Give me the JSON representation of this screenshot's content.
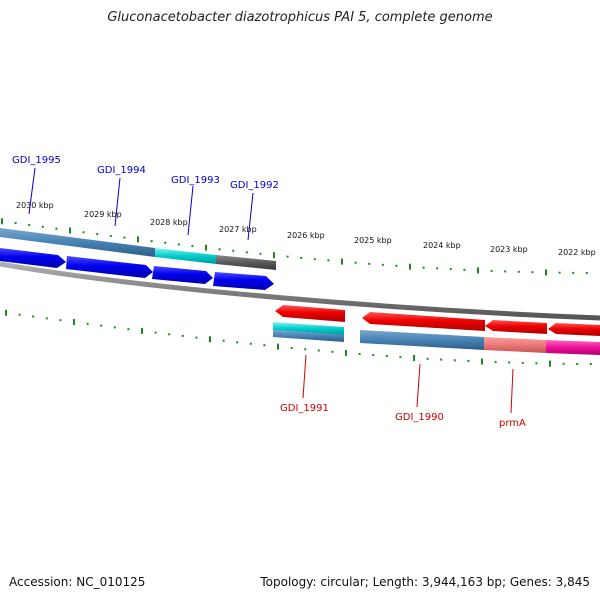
{
  "title": "Gluconacetobacter diazotrophicus PAI 5, complete genome",
  "footer": {
    "accession": "Accession: NC_010125",
    "summary": "Topology: circular; Length: 3,944,163 bp; Genes: 3,845"
  },
  "colors": {
    "forward_gene": "#0000ee",
    "forward_label": "#0000cc",
    "reverse_gene": "#ee0000",
    "reverse_label": "#cc0000",
    "tick": "#1e8a1e",
    "backbone": "#808080",
    "cds_steel": "#4682b4",
    "cds_cyan": "#00cccc",
    "cds_gray": "#5a5a5a",
    "cds_salmon": "#ee7777",
    "cds_magenta": "#ee1199"
  },
  "scale_labels": [
    "2030 kbp",
    "2029 kbp",
    "2028 kbp",
    "2027 kbp",
    "2026 kbp",
    "2025 kbp",
    "2024 kbp",
    "2023 kbp",
    "2022 kbp"
  ],
  "upper_genes": [
    {
      "label": "GDI_1995",
      "color": "#0000ee"
    },
    {
      "label": "GDI_1994",
      "color": "#0000ee"
    },
    {
      "label": "GDI_1993",
      "color": "#0000ee"
    },
    {
      "label": "GDI_1992",
      "color": "#0000ee"
    }
  ],
  "lower_genes": [
    {
      "label": "GDI_1991",
      "color": "#ee0000"
    },
    {
      "label": "GDI_1990",
      "color": "#ee0000"
    },
    {
      "label": "prmA",
      "color": "#ee0000"
    }
  ]
}
